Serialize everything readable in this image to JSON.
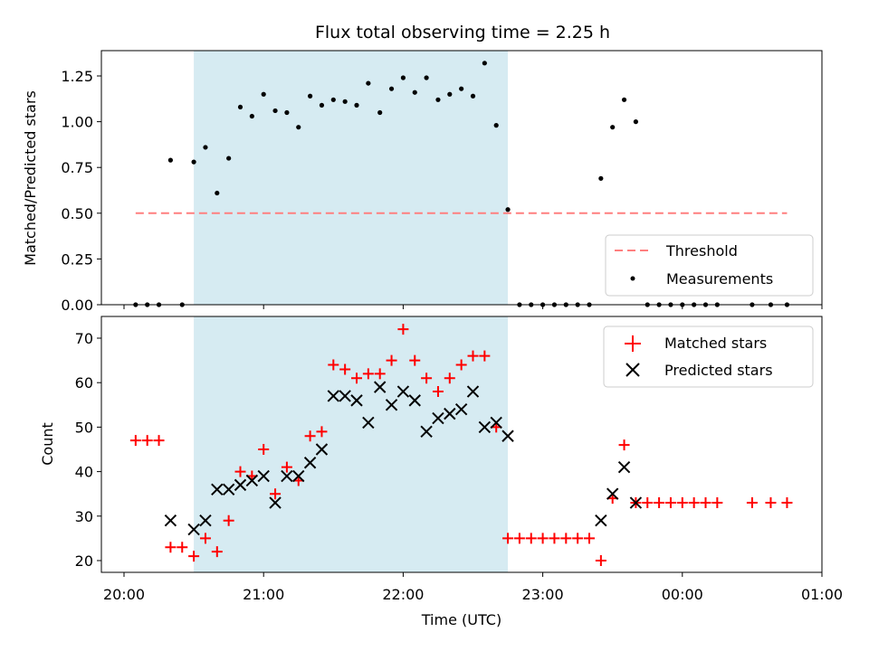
{
  "chart_data": [
    {
      "type": "scatter",
      "title": "Flux total observing time = 2.25 h",
      "xlabel": "",
      "ylabel": "Matched/Predicted stars",
      "ylim": [
        0,
        1.4
      ],
      "xlim": [
        "20:00",
        "01:00"
      ],
      "yticks": [
        "0.00",
        "0.25",
        "0.50",
        "0.75",
        "1.00",
        "1.25"
      ],
      "grid": false,
      "legend_position": "lower-right",
      "shaded_interval": [
        "20:30",
        "22:45"
      ],
      "shade_color": "#add8e6",
      "threshold": {
        "name": "Threshold",
        "value": 0.5,
        "x_range": [
          "20:05",
          "00:45"
        ],
        "color": "#ff7f7f",
        "style": "dashed"
      },
      "series": [
        {
          "name": "Measurements",
          "marker": "dot",
          "color": "#000000",
          "points": [
            [
              "20:05",
              0.0
            ],
            [
              "20:10",
              0.0
            ],
            [
              "20:15",
              0.0
            ],
            [
              "20:20",
              0.79
            ],
            [
              "20:25",
              0.0
            ],
            [
              "20:30",
              0.78
            ],
            [
              "20:35",
              0.86
            ],
            [
              "20:40",
              0.61
            ],
            [
              "20:45",
              0.8
            ],
            [
              "20:50",
              1.08
            ],
            [
              "20:55",
              1.03
            ],
            [
              "21:00",
              1.15
            ],
            [
              "21:05",
              1.06
            ],
            [
              "21:10",
              1.05
            ],
            [
              "21:15",
              0.97
            ],
            [
              "21:20",
              1.14
            ],
            [
              "21:25",
              1.09
            ],
            [
              "21:30",
              1.12
            ],
            [
              "21:35",
              1.11
            ],
            [
              "21:40",
              1.09
            ],
            [
              "21:45",
              1.21
            ],
            [
              "21:50",
              1.05
            ],
            [
              "21:55",
              1.18
            ],
            [
              "22:00",
              1.24
            ],
            [
              "22:05",
              1.16
            ],
            [
              "22:10",
              1.24
            ],
            [
              "22:15",
              1.12
            ],
            [
              "22:20",
              1.15
            ],
            [
              "22:25",
              1.18
            ],
            [
              "22:30",
              1.14
            ],
            [
              "22:35",
              1.32
            ],
            [
              "22:40",
              0.98
            ],
            [
              "22:45",
              0.52
            ],
            [
              "22:50",
              0.0
            ],
            [
              "22:55",
              0.0
            ],
            [
              "23:00",
              0.0
            ],
            [
              "23:05",
              0.0
            ],
            [
              "23:10",
              0.0
            ],
            [
              "23:15",
              0.0
            ],
            [
              "23:20",
              0.0
            ],
            [
              "23:25",
              0.69
            ],
            [
              "23:30",
              0.97
            ],
            [
              "23:35",
              1.12
            ],
            [
              "23:40",
              1.0
            ],
            [
              "23:45",
              0.0
            ],
            [
              "23:50",
              0.0
            ],
            [
              "23:55",
              0.0
            ],
            [
              "00:00",
              0.0
            ],
            [
              "00:05",
              0.0
            ],
            [
              "00:10",
              0.0
            ],
            [
              "00:15",
              0.0
            ],
            [
              "00:30",
              0.0
            ],
            [
              "00:38",
              0.0
            ],
            [
              "00:45",
              0.0
            ]
          ]
        }
      ]
    },
    {
      "type": "scatter",
      "title": "",
      "xlabel": "Time (UTC)",
      "ylabel": "Count",
      "ylim": [
        17.5,
        75
      ],
      "xlim": [
        "20:00",
        "01:00"
      ],
      "yticks": [
        "20",
        "30",
        "40",
        "50",
        "60",
        "70"
      ],
      "xticks": [
        "20:00",
        "21:00",
        "22:00",
        "23:00",
        "00:00",
        "01:00"
      ],
      "grid": false,
      "legend_position": "top-right",
      "shaded_interval": [
        "20:30",
        "22:45"
      ],
      "shade_color": "#add8e6",
      "series": [
        {
          "name": "Matched stars",
          "marker": "plus",
          "color": "#ff0000",
          "points": [
            [
              "20:05",
              47
            ],
            [
              "20:10",
              47
            ],
            [
              "20:15",
              47
            ],
            [
              "20:20",
              23
            ],
            [
              "20:25",
              23
            ],
            [
              "20:30",
              21
            ],
            [
              "20:35",
              25
            ],
            [
              "20:40",
              22
            ],
            [
              "20:45",
              29
            ],
            [
              "20:50",
              40
            ],
            [
              "20:55",
              39
            ],
            [
              "21:00",
              45
            ],
            [
              "21:05",
              35
            ],
            [
              "21:10",
              41
            ],
            [
              "21:15",
              38
            ],
            [
              "21:20",
              48
            ],
            [
              "21:25",
              49
            ],
            [
              "21:30",
              64
            ],
            [
              "21:35",
              63
            ],
            [
              "21:40",
              61
            ],
            [
              "21:45",
              62
            ],
            [
              "21:50",
              62
            ],
            [
              "21:55",
              65
            ],
            [
              "22:00",
              72
            ],
            [
              "22:05",
              65
            ],
            [
              "22:10",
              61
            ],
            [
              "22:15",
              58
            ],
            [
              "22:20",
              61
            ],
            [
              "22:25",
              64
            ],
            [
              "22:30",
              66
            ],
            [
              "22:35",
              66
            ],
            [
              "22:40",
              50
            ],
            [
              "22:45",
              25
            ],
            [
              "22:50",
              25
            ],
            [
              "22:55",
              25
            ],
            [
              "23:00",
              25
            ],
            [
              "23:05",
              25
            ],
            [
              "23:10",
              25
            ],
            [
              "23:15",
              25
            ],
            [
              "23:20",
              25
            ],
            [
              "23:25",
              20
            ],
            [
              "23:30",
              34
            ],
            [
              "23:35",
              46
            ],
            [
              "23:40",
              33
            ],
            [
              "23:45",
              33
            ],
            [
              "23:50",
              33
            ],
            [
              "23:55",
              33
            ],
            [
              "00:00",
              33
            ],
            [
              "00:05",
              33
            ],
            [
              "00:10",
              33
            ],
            [
              "00:15",
              33
            ],
            [
              "00:30",
              33
            ],
            [
              "00:38",
              33
            ],
            [
              "00:45",
              33
            ]
          ]
        },
        {
          "name": "Predicted stars",
          "marker": "x",
          "color": "#000000",
          "points": [
            [
              "20:20",
              29
            ],
            [
              "20:30",
              27
            ],
            [
              "20:35",
              29
            ],
            [
              "20:40",
              36
            ],
            [
              "20:45",
              36
            ],
            [
              "20:50",
              37
            ],
            [
              "20:55",
              38
            ],
            [
              "21:00",
              39
            ],
            [
              "21:05",
              33
            ],
            [
              "21:10",
              39
            ],
            [
              "21:15",
              39
            ],
            [
              "21:20",
              42
            ],
            [
              "21:25",
              45
            ],
            [
              "21:30",
              57
            ],
            [
              "21:35",
              57
            ],
            [
              "21:40",
              56
            ],
            [
              "21:45",
              51
            ],
            [
              "21:50",
              59
            ],
            [
              "21:55",
              55
            ],
            [
              "22:00",
              58
            ],
            [
              "22:05",
              56
            ],
            [
              "22:10",
              49
            ],
            [
              "22:15",
              52
            ],
            [
              "22:20",
              53
            ],
            [
              "22:25",
              54
            ],
            [
              "22:30",
              58
            ],
            [
              "22:35",
              50
            ],
            [
              "22:40",
              51
            ],
            [
              "22:45",
              48
            ],
            [
              "23:25",
              29
            ],
            [
              "23:30",
              35
            ],
            [
              "23:35",
              41
            ],
            [
              "23:40",
              33
            ]
          ]
        }
      ]
    }
  ]
}
